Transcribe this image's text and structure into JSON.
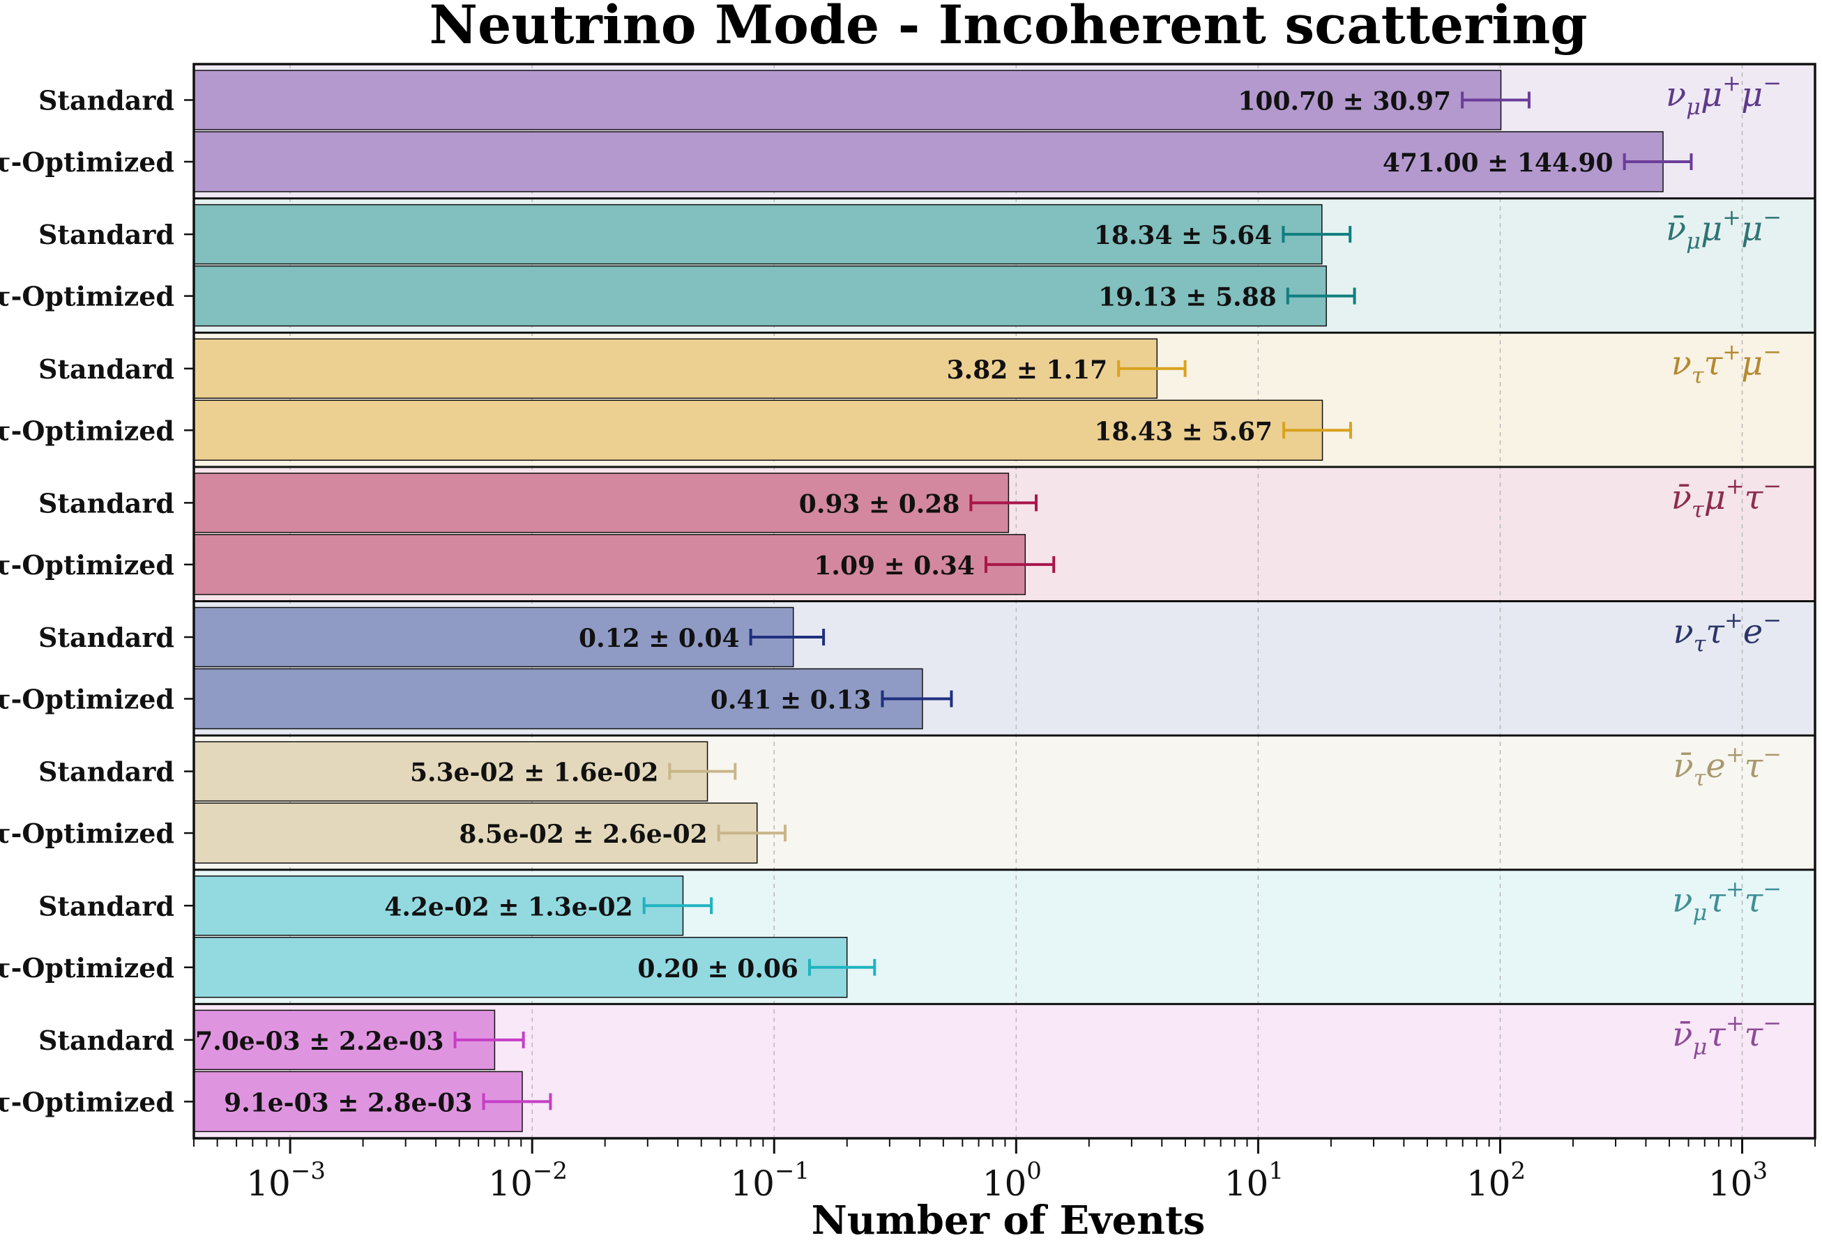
{
  "chart_data": {
    "type": "bar",
    "orientation": "horizontal",
    "title": "Neutrino Mode - Incoherent scattering",
    "xlabel": "Number of Events",
    "xscale": "log",
    "xlim": [
      0.0004,
      2000
    ],
    "x_ticks": [
      {
        "value": 0.001,
        "base": "10",
        "exp": "−3"
      },
      {
        "value": 0.01,
        "base": "10",
        "exp": "−2"
      },
      {
        "value": 0.1,
        "base": "10",
        "exp": "−1"
      },
      {
        "value": 1,
        "base": "10",
        "exp": "0"
      },
      {
        "value": 10,
        "base": "10",
        "exp": "1"
      },
      {
        "value": 100,
        "base": "10",
        "exp": "2"
      },
      {
        "value": 1000,
        "base": "10",
        "exp": "3"
      }
    ],
    "grid": "x-major dashed",
    "channels": [
      {
        "process": {
          "base1": "ν",
          "bar": false,
          "sub": "μ",
          "p1": "μ",
          "p2": "μ"
        },
        "color": "#6a3d9a",
        "bar_color": "#b399cd",
        "band_color": "#efe9f4",
        "label_color": "#5e3a8a",
        "bars": [
          {
            "config": "Standard",
            "value": 100.7,
            "error": 30.97,
            "text": "100.70 ± 30.97"
          },
          {
            "config": "τ-Optimized",
            "value": 471.0,
            "error": 144.9,
            "text": "471.00 ± 144.90"
          }
        ]
      },
      {
        "process": {
          "base1": "ν",
          "bar": true,
          "sub": "μ",
          "p1": "μ",
          "p2": "μ"
        },
        "color": "#0f7f7f",
        "bar_color": "#82bfbf",
        "band_color": "#e6f2f1",
        "label_color": "#2f7475",
        "bars": [
          {
            "config": "Standard",
            "value": 18.34,
            "error": 5.64,
            "text": "18.34 ± 5.64"
          },
          {
            "config": "τ-Optimized",
            "value": 19.13,
            "error": 5.88,
            "text": "19.13 ± 5.88"
          }
        ]
      },
      {
        "process": {
          "base1": "ν",
          "bar": false,
          "sub": "τ",
          "p1": "τ",
          "p2": "μ"
        },
        "color": "#d9a21f",
        "bar_color": "#ecd092",
        "band_color": "#f9f3e5",
        "label_color": "#b38a31",
        "bars": [
          {
            "config": "Standard",
            "value": 3.82,
            "error": 1.17,
            "text": "3.82 ± 1.17"
          },
          {
            "config": "τ-Optimized",
            "value": 18.43,
            "error": 5.67,
            "text": "18.43 ± 5.67"
          }
        ]
      },
      {
        "process": {
          "base1": "ν",
          "bar": true,
          "sub": "τ",
          "p1": "μ",
          "p2": "τ"
        },
        "color": "#a8164a",
        "bar_color": "#d3889f",
        "band_color": "#f5e4ea",
        "label_color": "#8b2d4f",
        "bars": [
          {
            "config": "Standard",
            "value": 0.93,
            "error": 0.28,
            "text": "0.93 ± 0.28"
          },
          {
            "config": "τ-Optimized",
            "value": 1.09,
            "error": 0.34,
            "text": "1.09 ± 0.34"
          }
        ]
      },
      {
        "process": {
          "base1": "ν",
          "bar": false,
          "sub": "τ",
          "p1": "τ",
          "p2": "e"
        },
        "color": "#1f2f7f",
        "bar_color": "#8f9bc4",
        "band_color": "#e7e9f2",
        "label_color": "#2b3568",
        "bars": [
          {
            "config": "Standard",
            "value": 0.12,
            "error": 0.04,
            "text": "0.12 ± 0.04"
          },
          {
            "config": "τ-Optimized",
            "value": 0.41,
            "error": 0.13,
            "text": "0.41 ± 0.13"
          }
        ]
      },
      {
        "process": {
          "base1": "ν",
          "bar": true,
          "sub": "τ",
          "p1": "e",
          "p2": "τ"
        },
        "color": "#c9b58a",
        "bar_color": "#e3d8bb",
        "band_color": "#f8f6f0",
        "label_color": "#a8996f",
        "bars": [
          {
            "config": "Standard",
            "value": 0.053,
            "error": 0.016,
            "text": "5.3e-02 ± 1.6e-02"
          },
          {
            "config": "τ-Optimized",
            "value": 0.085,
            "error": 0.026,
            "text": "8.5e-02 ± 2.6e-02"
          }
        ]
      },
      {
        "process": {
          "base1": "ν",
          "bar": false,
          "sub": "μ",
          "p1": "τ",
          "p2": "τ"
        },
        "color": "#1fb3bf",
        "bar_color": "#93d9e0",
        "band_color": "#e7f6f7",
        "label_color": "#3f8e96",
        "bars": [
          {
            "config": "Standard",
            "value": 0.042,
            "error": 0.013,
            "text": "4.2e-02 ± 1.3e-02"
          },
          {
            "config": "τ-Optimized",
            "value": 0.2,
            "error": 0.06,
            "text": "0.20 ± 0.06"
          }
        ]
      },
      {
        "process": {
          "base1": "ν",
          "bar": true,
          "sub": "μ",
          "p1": "τ",
          "p2": "τ"
        },
        "color": "#c53ec5",
        "bar_color": "#df94e0",
        "band_color": "#f9e8f8",
        "label_color": "#8d4a97",
        "bars": [
          {
            "config": "Standard",
            "value": 0.007,
            "error": 0.0022,
            "text": "7.0e-03 ± 2.2e-03"
          },
          {
            "config": "τ-Optimized",
            "value": 0.0091,
            "error": 0.0028,
            "text": "9.1e-03 ± 2.8e-03"
          }
        ]
      }
    ]
  }
}
